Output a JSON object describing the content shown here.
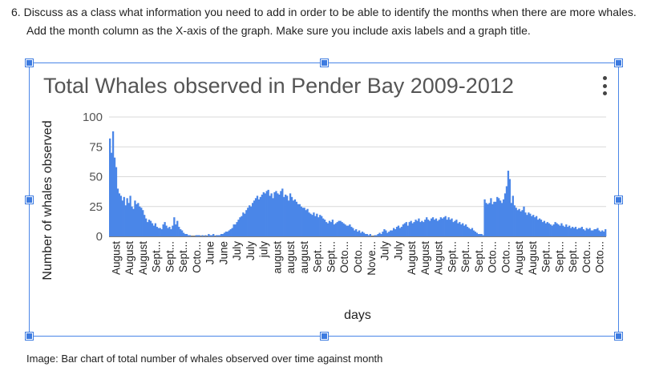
{
  "instructions": {
    "number": "6.",
    "text": "Discuss as a class what information you need to add in order to be able to identify the months when there are more whales. Add the month column as the X-axis of the graph. Make sure you include axis labels and a graph title."
  },
  "caption": "Image: Bar chart of total number of whales observed over time against month",
  "menu_icon": "kebab-menu-icon",
  "colors": {
    "bar": "#4a86e8",
    "frame": "#4a86e8",
    "grid": "#d9d9d9"
  },
  "chart_data": {
    "type": "bar",
    "title": "Total Whales observed in Pender Bay 2009-2012",
    "xlabel": "days",
    "ylabel": "Number of whales observed",
    "ylim": [
      0,
      100
    ],
    "yticks": [
      0,
      25,
      50,
      75,
      100
    ],
    "grid": true,
    "legend": "none",
    "x_tick_labels": [
      "August",
      "August",
      "August",
      "Sept...",
      "Sept...",
      "Sept...",
      "Octo...",
      "June",
      "June",
      "July",
      "July",
      "july",
      "august",
      "august",
      "august",
      "Sept...",
      "Sept...",
      "Octo...",
      "Octo...",
      "Nove...",
      "July",
      "July",
      "August",
      "August",
      "August",
      "Sept...",
      "Sept...",
      "Sept...",
      "Octo...",
      "Octo...",
      "August",
      "August",
      "Sept...",
      "Sept...",
      "Sept...",
      "Octo...",
      "Octo..."
    ],
    "values": [
      82,
      70,
      88,
      66,
      58,
      40,
      36,
      34,
      30,
      33,
      26,
      32,
      28,
      34,
      25,
      23,
      30,
      27,
      28,
      25,
      24,
      22,
      18,
      15,
      12,
      14,
      13,
      11,
      9,
      11,
      8,
      7,
      7,
      6,
      10,
      12,
      9,
      7,
      8,
      6,
      9,
      16,
      10,
      13,
      8,
      6,
      5,
      3,
      2,
      2,
      1,
      1,
      0,
      0,
      0,
      1,
      1,
      1,
      0,
      1,
      0,
      1,
      0,
      2,
      1,
      1,
      2,
      0,
      1,
      1,
      1,
      2,
      2,
      3,
      4,
      4,
      5,
      6,
      7,
      10,
      10,
      12,
      14,
      16,
      17,
      20,
      19,
      22,
      24,
      26,
      25,
      28,
      30,
      32,
      34,
      31,
      33,
      35,
      37,
      36,
      38,
      39,
      34,
      36,
      32,
      37,
      38,
      36,
      35,
      38,
      40,
      33,
      35,
      34,
      30,
      36,
      33,
      30,
      31,
      29,
      27,
      27,
      25,
      24,
      24,
      22,
      23,
      20,
      19,
      18,
      20,
      17,
      19,
      16,
      18,
      17,
      15,
      14,
      12,
      11,
      13,
      12,
      14,
      10,
      11,
      12,
      13,
      13,
      12,
      11,
      10,
      9,
      9,
      10,
      8,
      7,
      5,
      6,
      4,
      5,
      3,
      4,
      3,
      2,
      2,
      1,
      2,
      0,
      0,
      1,
      1,
      2,
      3,
      2,
      4,
      6,
      5,
      3,
      4,
      5,
      5,
      7,
      6,
      8,
      9,
      7,
      8,
      10,
      11,
      12,
      9,
      12,
      13,
      11,
      12,
      14,
      13,
      15,
      12,
      13,
      12,
      14,
      16,
      14,
      13,
      15,
      16,
      14,
      15,
      13,
      14,
      16,
      15,
      16,
      17,
      14,
      16,
      14,
      15,
      12,
      13,
      14,
      11,
      12,
      10,
      11,
      9,
      10,
      8,
      7,
      6,
      7,
      5,
      4,
      3,
      2,
      2,
      2,
      1,
      31,
      28,
      27,
      28,
      32,
      27,
      29,
      29,
      33,
      32,
      30,
      28,
      31,
      36,
      42,
      55,
      48,
      28,
      34,
      26,
      24,
      22,
      23,
      21,
      22,
      25,
      20,
      18,
      20,
      19,
      17,
      18,
      16,
      17,
      14,
      15,
      14,
      12,
      13,
      11,
      12,
      11,
      10,
      9,
      10,
      12,
      11,
      10,
      9,
      11,
      9,
      8,
      10,
      8,
      9,
      7,
      8,
      7,
      8,
      6,
      7,
      7,
      8,
      6,
      5,
      7,
      6,
      7,
      5,
      5,
      6,
      6,
      7,
      5,
      4,
      5,
      4,
      6
    ]
  }
}
